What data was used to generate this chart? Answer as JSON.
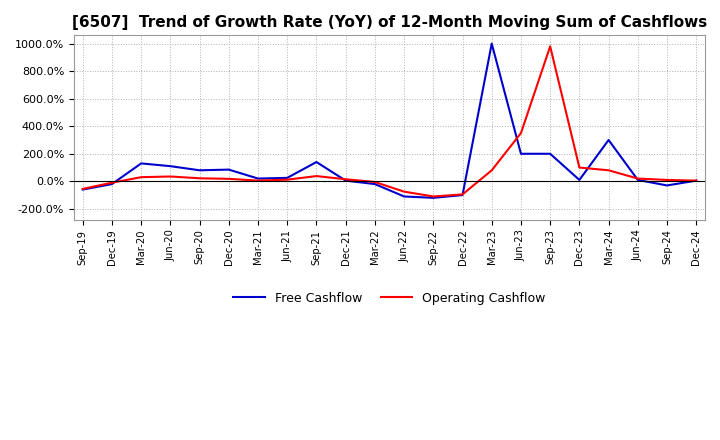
{
  "title": "[6507]  Trend of Growth Rate (YoY) of 12-Month Moving Sum of Cashflows",
  "title_fontsize": 11,
  "ylim": [
    -280,
    1060
  ],
  "yticks": [
    -200,
    0,
    200,
    400,
    600,
    800,
    1000
  ],
  "ytick_labels": [
    "-200.0%",
    "0.0%",
    "200.0%",
    "400.0%",
    "600.0%",
    "800.0%",
    "1000.0%"
  ],
  "background_color": "#ffffff",
  "plot_bg_color": "#ffffff",
  "grid_color": "#b0b0b0",
  "x_labels": [
    "Sep-19",
    "Dec-19",
    "Mar-20",
    "Jun-20",
    "Sep-20",
    "Dec-20",
    "Mar-21",
    "Jun-21",
    "Sep-21",
    "Dec-21",
    "Mar-22",
    "Jun-22",
    "Sep-22",
    "Dec-22",
    "Mar-23",
    "Jun-23",
    "Sep-23",
    "Dec-23",
    "Mar-24",
    "Jun-24",
    "Sep-24",
    "Dec-24"
  ],
  "operating_cashflow": [
    -55,
    -10,
    30,
    35,
    22,
    18,
    5,
    12,
    38,
    15,
    -5,
    -75,
    -110,
    -95,
    80,
    350,
    980,
    100,
    80,
    20,
    10,
    5
  ],
  "free_cashflow": [
    -60,
    -20,
    130,
    110,
    80,
    85,
    20,
    25,
    140,
    5,
    -20,
    -110,
    -120,
    -100,
    1000,
    200,
    200,
    10,
    300,
    10,
    -30,
    5
  ],
  "op_color": "#ff0000",
  "free_color": "#0000cd",
  "line_width": 1.5,
  "legend_op": "Operating Cashflow",
  "legend_free": "Free Cashflow"
}
